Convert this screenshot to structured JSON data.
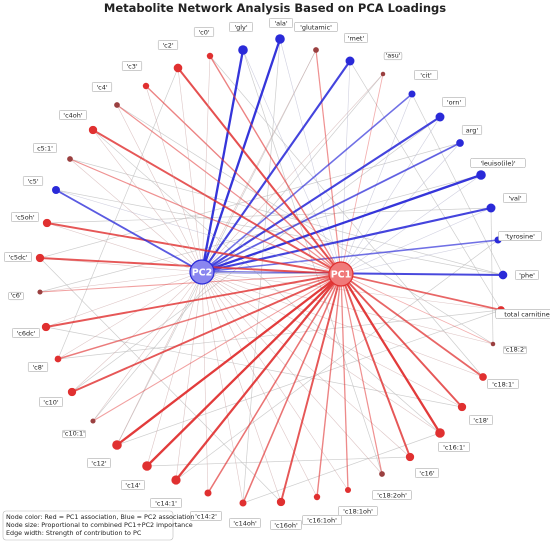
{
  "title": "Metabolite Network Analysis Based on PCA Loadings",
  "colors": {
    "pc1": "#e03030",
    "pc2": "#2a2ad8",
    "pc1_hub": "#f07a7a",
    "pc2_hub": "#8a86f0",
    "dim_red": "#9a4040",
    "dim_blue": "#3a3a70",
    "grey_edge": "#bdbdbd"
  },
  "hubs": [
    {
      "id": "pc1",
      "label": "PC1"
    },
    {
      "id": "pc2",
      "label": "PC2"
    }
  ],
  "nodes": [
    {
      "label": "'gly'",
      "assoc": "pc2",
      "importance": 1.0
    },
    {
      "label": "'ala'",
      "assoc": "pc2",
      "importance": 1.0
    },
    {
      "label": "'glutamic'",
      "assoc": "pc1",
      "importance": 0.4
    },
    {
      "label": "'met'",
      "assoc": "pc2",
      "importance": 0.9
    },
    {
      "label": "'asu'",
      "assoc": "pc1",
      "importance": 0.2
    },
    {
      "label": "'cit'",
      "assoc": "pc2",
      "importance": 0.6
    },
    {
      "label": "'orn'",
      "assoc": "pc2",
      "importance": 0.9
    },
    {
      "label": "arg'",
      "assoc": "pc2",
      "importance": 0.7
    },
    {
      "label": "'leuiso(ile)'",
      "assoc": "pc2",
      "importance": 1.0
    },
    {
      "label": "'val'",
      "assoc": "pc2",
      "importance": 0.9
    },
    {
      "label": "'tyrosine'",
      "assoc": "pc2",
      "importance": 0.6
    },
    {
      "label": "'phe'",
      "assoc": "pc2",
      "importance": 0.85
    },
    {
      "label": "total carnitine",
      "assoc": "pc1",
      "importance": 0.7
    },
    {
      "label": "'c18:2'",
      "assoc": "pc1",
      "importance": 0.2
    },
    {
      "label": "'c18:1'",
      "assoc": "pc1",
      "importance": 0.7
    },
    {
      "label": "'c18'",
      "assoc": "pc1",
      "importance": 0.8
    },
    {
      "label": "'c16:1'",
      "assoc": "pc1",
      "importance": 1.0
    },
    {
      "label": "'c16'",
      "assoc": "pc1",
      "importance": 0.8
    },
    {
      "label": "'c18:2oh'",
      "assoc": "pc1",
      "importance": 0.4
    },
    {
      "label": "'c18:1oh'",
      "assoc": "pc1",
      "importance": 0.45
    },
    {
      "label": "'c16:1oh'",
      "assoc": "pc1",
      "importance": 0.5
    },
    {
      "label": "'c16oh'",
      "assoc": "pc1",
      "importance": 0.8
    },
    {
      "label": "'c14oh'",
      "assoc": "pc1",
      "importance": 0.6
    },
    {
      "label": "'c14:2'",
      "assoc": "pc1",
      "importance": 0.6
    },
    {
      "label": "'c14:1'",
      "assoc": "pc1",
      "importance": 0.95
    },
    {
      "label": "'c14'",
      "assoc": "pc1",
      "importance": 1.0
    },
    {
      "label": "'c12'",
      "assoc": "pc1",
      "importance": 1.0
    },
    {
      "label": "'c10:1'",
      "assoc": "pc1",
      "importance": 0.3
    },
    {
      "label": "'c10'",
      "assoc": "pc1",
      "importance": 0.8
    },
    {
      "label": "'c8'",
      "assoc": "pc1",
      "importance": 0.55
    },
    {
      "label": "'c6dc'",
      "assoc": "pc1",
      "importance": 0.8
    },
    {
      "label": "'c6'",
      "assoc": "pc1",
      "importance": 0.3
    },
    {
      "label": "'c5dc'",
      "assoc": "pc1",
      "importance": 0.8
    },
    {
      "label": "'c5oh'",
      "assoc": "pc1",
      "importance": 0.8
    },
    {
      "label": "'c5'",
      "assoc": "pc2",
      "importance": 0.75
    },
    {
      "label": "c5:1'",
      "assoc": "pc1",
      "importance": 0.4
    },
    {
      "label": "'c4oh'",
      "assoc": "pc1",
      "importance": 0.8
    },
    {
      "label": "'c4'",
      "assoc": "pc1",
      "importance": 0.4
    },
    {
      "label": "'c3'",
      "assoc": "pc1",
      "importance": 0.5
    },
    {
      "label": "'c2'",
      "assoc": "pc1",
      "importance": 0.85
    },
    {
      "label": "'c0'",
      "assoc": "pc1",
      "importance": 0.5
    }
  ],
  "legend": [
    "Node color: Red = PC1 association, Blue = PC2 association",
    "Node size: Proportional to combined PC1+PC2 importance",
    "Edge width: Strength of contribution to PC"
  ]
}
